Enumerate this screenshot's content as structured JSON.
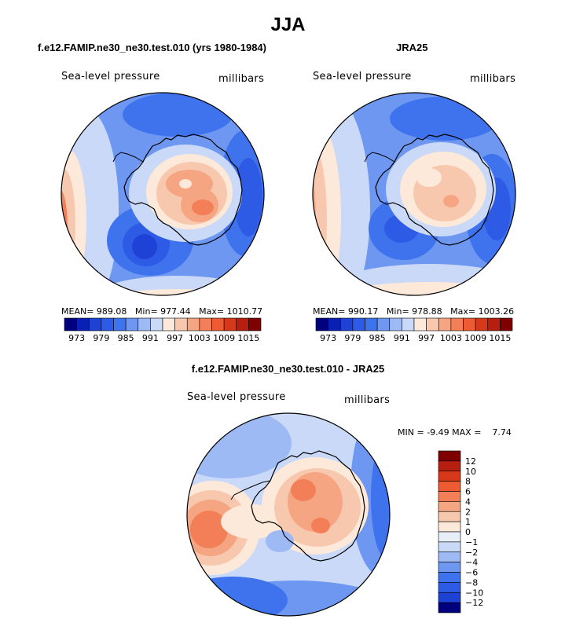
{
  "figure": {
    "title": "JJA"
  },
  "chart_data": [
    {
      "type": "heatmap",
      "projection": "south polar stereographic",
      "title": "f.e12.FAMIP.ne30_ne30.test.010 (yrs 1980-1984)",
      "variable": "Sea-level pressure",
      "units": "millibars",
      "mean_label": "MEAN=",
      "mean": "989.08",
      "min_label": "Min=",
      "min": "977.44",
      "max_label": "Max=",
      "max": "1010.77",
      "colorbar": {
        "orientation": "horizontal",
        "ticks": [
          "973",
          "979",
          "985",
          "991",
          "997",
          "1003",
          "1009",
          "1015"
        ],
        "colors": [
          "#00007f",
          "#0a1fb4",
          "#1e42d6",
          "#2e5be6",
          "#3f73ee",
          "#6e97f2",
          "#9dbaf5",
          "#c9d9f7",
          "#fde9d9",
          "#f8c8ae",
          "#f5a582",
          "#f27f57",
          "#ee5a32",
          "#d8381a",
          "#b61e10",
          "#7f0000"
        ]
      }
    },
    {
      "type": "heatmap",
      "projection": "south polar stereographic",
      "title": "JRA25",
      "variable": "Sea-level pressure",
      "units": "millibars",
      "mean_label": "MEAN=",
      "mean": "990.17",
      "min_label": "Min=",
      "min": "978.88",
      "max_label": "Max=",
      "max": "1003.26",
      "colorbar": {
        "orientation": "horizontal",
        "ticks": [
          "973",
          "979",
          "985",
          "991",
          "997",
          "1003",
          "1009",
          "1015"
        ],
        "colors": [
          "#00007f",
          "#0a1fb4",
          "#1e42d6",
          "#2e5be6",
          "#3f73ee",
          "#6e97f2",
          "#9dbaf5",
          "#c9d9f7",
          "#fde9d9",
          "#f8c8ae",
          "#f5a582",
          "#f27f57",
          "#ee5a32",
          "#d8381a",
          "#b61e10",
          "#7f0000"
        ]
      }
    },
    {
      "type": "heatmap",
      "projection": "south polar stereographic",
      "title": "f.e12.FAMIP.ne30_ne30.test.010 - JRA25",
      "variable": "Sea-level pressure",
      "units": "millibars",
      "min_label": "MIN =",
      "min": "-9.49",
      "max_label": "MAX =",
      "max": "7.74",
      "colorbar": {
        "orientation": "vertical",
        "ticks": [
          "12",
          "10",
          "8",
          "6",
          "4",
          "2",
          "1",
          "0",
          "−1",
          "−2",
          "−4",
          "−6",
          "−8",
          "−10",
          "−12"
        ],
        "colors": [
          "#7f0000",
          "#b61e10",
          "#d8381a",
          "#ee5a32",
          "#f27f57",
          "#f5a582",
          "#f8c8ae",
          "#fde9d9",
          "#e8eef8",
          "#c9d9f7",
          "#9dbaf5",
          "#6e97f2",
          "#3f73ee",
          "#2e5be6",
          "#1e42d6",
          "#00007f"
        ]
      }
    }
  ]
}
